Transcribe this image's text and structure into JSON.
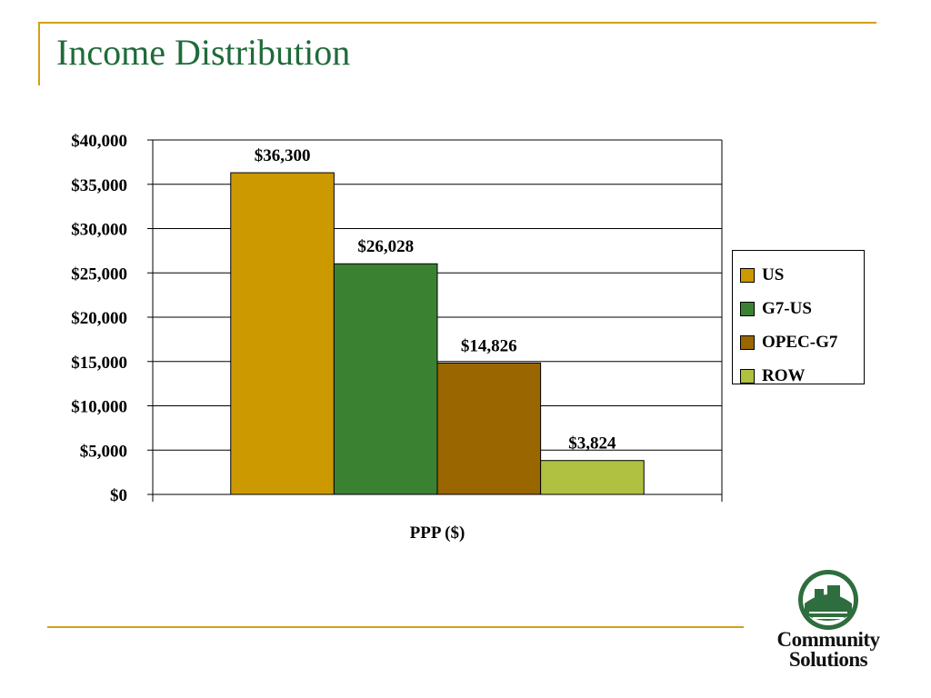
{
  "slide": {
    "title": "Income Distribution"
  },
  "colors": {
    "accent_rule": "#d4a017",
    "title": "#1f6b3a"
  },
  "chart_data": {
    "type": "bar",
    "xlabel": "PPP ($)",
    "ylabel": "",
    "ylim": [
      0,
      40000
    ],
    "ytick_step": 5000,
    "yticks": [
      "$0",
      "$5,000",
      "$10,000",
      "$15,000",
      "$20,000",
      "$25,000",
      "$30,000",
      "$35,000",
      "$40,000"
    ],
    "grid": true,
    "legend_position": "right",
    "categories": [
      "PPP ($)"
    ],
    "series": [
      {
        "name": "US",
        "values": [
          36300
        ],
        "label": "$36,300",
        "color": "#cc9900"
      },
      {
        "name": "G7-US",
        "values": [
          26028
        ],
        "label": "$26,028",
        "color": "#3a8232"
      },
      {
        "name": "OPEC-G7",
        "values": [
          14826
        ],
        "label": "$14,826",
        "color": "#996600"
      },
      {
        "name": "ROW",
        "values": [
          3824
        ],
        "label": "$3,824",
        "color": "#b0c040"
      }
    ]
  },
  "logo": {
    "icon": "community-solutions-seal",
    "line1": "Community",
    "line2": "Solutions"
  }
}
